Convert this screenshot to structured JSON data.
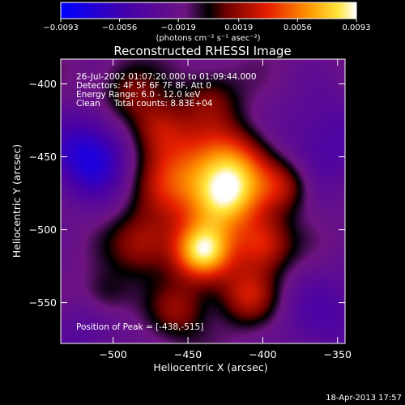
{
  "chart_data": {
    "type": "heatmap",
    "title": "Reconstructed RHESSI Image",
    "xlabel": "Heliocentric X (arcsec)",
    "ylabel": "Heliocentric Y (arcsec)",
    "xlim": [
      -535,
      -345
    ],
    "ylim": [
      -578,
      -383
    ],
    "x_ticks": [
      {
        "value": -500,
        "label": "−500"
      },
      {
        "value": -450,
        "label": "−450"
      },
      {
        "value": -400,
        "label": "−400"
      },
      {
        "value": -350,
        "label": "−350"
      }
    ],
    "y_ticks": [
      {
        "value": -400,
        "label": "−400"
      },
      {
        "value": -450,
        "label": "−450"
      },
      {
        "value": -500,
        "label": "−500"
      },
      {
        "value": -550,
        "label": "−550"
      }
    ],
    "colorbar": {
      "min": -0.0093,
      "max": 0.0093,
      "unit_label": "(photons cm⁻² s⁻¹ asec⁻²)",
      "ticks": [
        {
          "value": -0.0093,
          "label": "−0.0093"
        },
        {
          "value": -0.0056,
          "label": "−0.0056"
        },
        {
          "value": -0.0019,
          "label": "−0.0019"
        },
        {
          "value": 0.0019,
          "label": "0.0019"
        },
        {
          "value": 0.0056,
          "label": "0.0056"
        },
        {
          "value": 0.0093,
          "label": "0.0093"
        }
      ]
    },
    "sources": [
      {
        "x": -440,
        "y": -515,
        "amp": 0.0093,
        "sigma": 14
      },
      {
        "x": -418,
        "y": -455,
        "amp": 0.0062,
        "sigma": 18
      },
      {
        "x": -455,
        "y": -465,
        "amp": 0.0058,
        "sigma": 22
      },
      {
        "x": -425,
        "y": -480,
        "amp": 0.007,
        "sigma": 16
      },
      {
        "x": -400,
        "y": -510,
        "amp": 0.0055,
        "sigma": 14
      },
      {
        "x": -470,
        "y": -430,
        "amp": 0.004,
        "sigma": 14
      },
      {
        "x": -410,
        "y": -545,
        "amp": 0.0045,
        "sigma": 14
      },
      {
        "x": -455,
        "y": -555,
        "amp": 0.0035,
        "sigma": 14
      },
      {
        "x": -480,
        "y": -510,
        "amp": 0.004,
        "sigma": 15
      },
      {
        "x": -385,
        "y": -470,
        "amp": 0.004,
        "sigma": 13
      },
      {
        "x": -435,
        "y": -410,
        "amp": 0.003,
        "sigma": 14
      },
      {
        "x": -505,
        "y": -545,
        "amp": 0.0025,
        "sigma": 12
      },
      {
        "x": -490,
        "y": -405,
        "amp": 0.003,
        "sigma": 14
      }
    ],
    "background": [
      {
        "x": -515,
        "y": -450,
        "amp": -0.006,
        "sigma": 20
      },
      {
        "x": -360,
        "y": -440,
        "amp": -0.003,
        "sigma": 25
      },
      {
        "x": -355,
        "y": -560,
        "amp": -0.0025,
        "sigma": 25
      },
      {
        "x": -520,
        "y": -570,
        "amp": -0.002,
        "sigma": 20
      }
    ],
    "annotations": [
      "26-Jul-2002 01:07:20.000 to 01:09:44.000",
      "Detectors: 4F 5F 6F 7F 8F, Att 0",
      "Energy Range: 6.0 - 12.0 keV",
      "Clean     Total counts: 8.83E+04"
    ],
    "peak_label": "Position of Peak = [-438,-515]",
    "peak": [
      -438,
      -515
    ]
  },
  "footer": {
    "date": "18-Apr-2013 17:57"
  }
}
